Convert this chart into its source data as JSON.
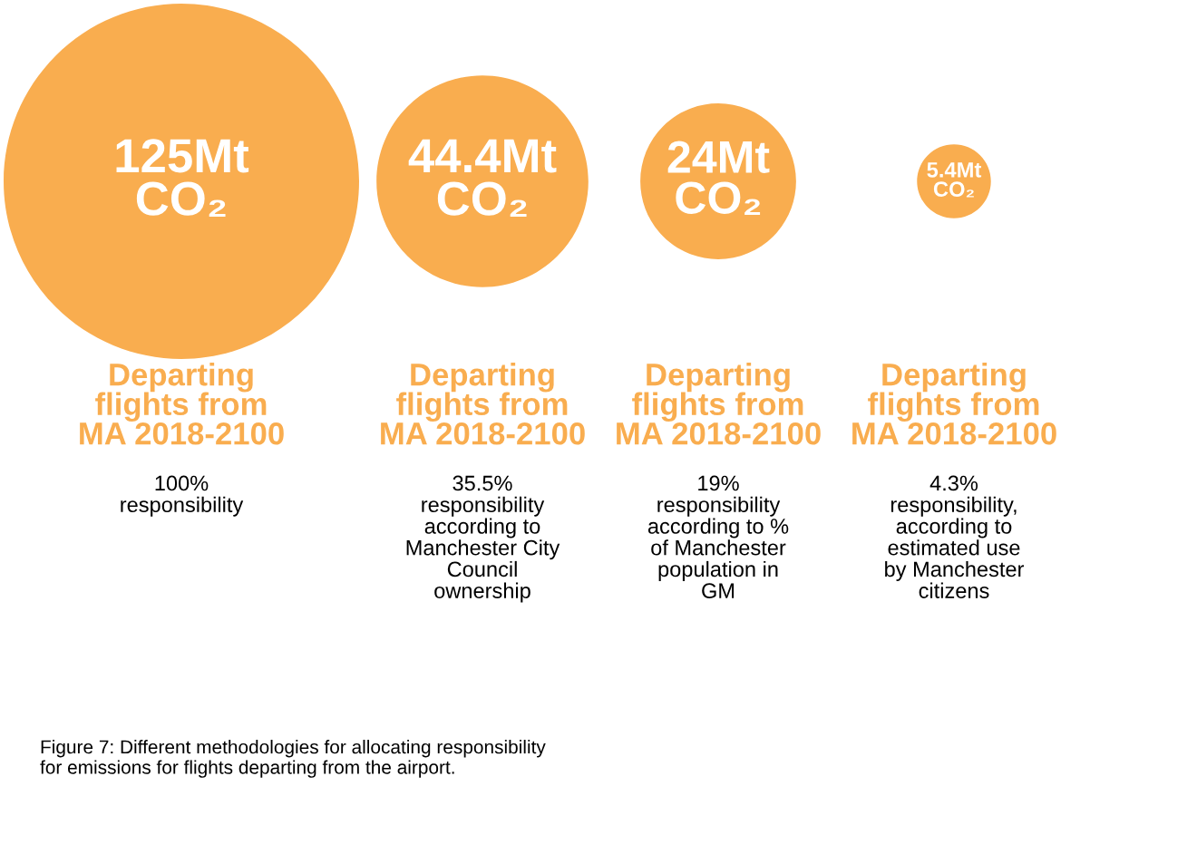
{
  "chart_data": {
    "type": "other",
    "color": "#f9ad4f",
    "categories": [
      "Departing\nflights from\nMA 2018-2100",
      "Departing\nflights from\nMA 2018-2100",
      "Departing\nflights from\nMA 2018-2100",
      "Departing\nflights from\nMA 2018-2100"
    ],
    "values": [
      125,
      44.4,
      24,
      5.4
    ],
    "value_labels": [
      "125Mt\nCO₂",
      "44.4Mt\nCO₂",
      "24Mt\nCO₂",
      "5.4Mt\nCO₂"
    ],
    "annotations": [
      "100%\nresponsibility",
      "35.5%\nresponsibility\naccording to\nManchester City\nCouncil\nownership",
      "19%\nresponsibility\naccording to %\nof Manchester\npopulation in\nGM",
      "4.3%\nresponsibility,\naccording to\nestimated use\nby Manchester\ncitizens",
      "Figure 7: Different methodologies for allocating responsibility\nfor emissions for flights departing from the airport."
    ]
  }
}
